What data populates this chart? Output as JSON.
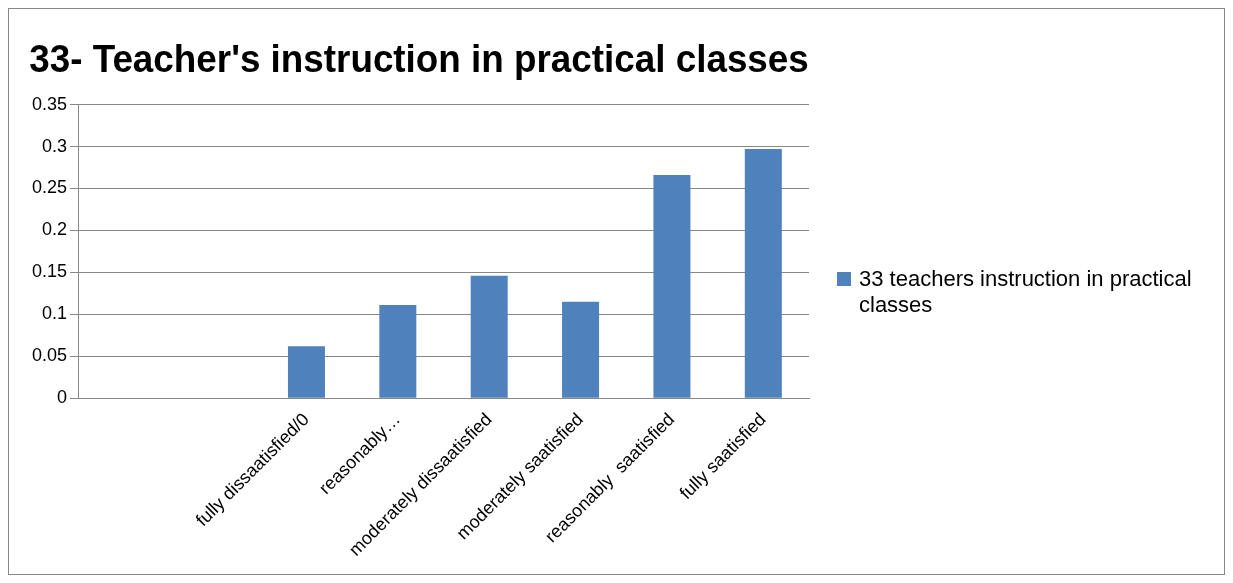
{
  "chart_data": {
    "type": "bar",
    "title": "33- Teacher's instruction in practical classes",
    "categories": [
      null,
      null,
      "fully dissaatisfied/0",
      "reasonably…",
      "moderately dissaatisfied",
      "moderately saatisfied",
      "reasonably  saatisfied",
      "fully saatisfied"
    ],
    "series": [
      {
        "name": "33 teachers instruction in practical classes",
        "color": "#4f81bd",
        "values": [
          null,
          null,
          0.062,
          0.111,
          0.146,
          0.115,
          0.266,
          0.297
        ]
      }
    ],
    "ylim": [
      0,
      0.35
    ],
    "yticks": [
      0,
      0.05,
      0.1,
      0.15,
      0.2,
      0.25,
      0.3,
      0.35
    ],
    "grid": "y",
    "legend": "right"
  }
}
